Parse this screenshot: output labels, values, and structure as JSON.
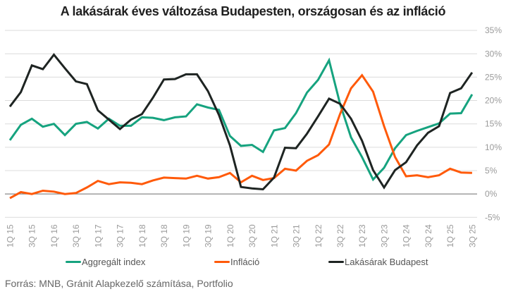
{
  "chart_data": {
    "type": "line",
    "title": "A lakásárak éves változása Budapesten, országosan és az infláció",
    "xlabel": "",
    "ylabel": "",
    "ylim": [
      -5,
      35
    ],
    "yticks": [
      "35%",
      "30%",
      "25%",
      "20%",
      "15%",
      "10%",
      "5%",
      "0%",
      "-5%"
    ],
    "ytick_values": [
      35,
      30,
      25,
      20,
      15,
      10,
      5,
      0,
      -5
    ],
    "y_axis_position": "right",
    "grid": true,
    "legend_position": "bottom",
    "x": [
      "1Q 15",
      "2Q 15",
      "3Q 15",
      "4Q 15",
      "1Q 16",
      "2Q 16",
      "3Q 16",
      "4Q 16",
      "1Q 17",
      "2Q 17",
      "3Q 17",
      "4Q 17",
      "1Q 18",
      "2Q 18",
      "3Q 18",
      "4Q 18",
      "1Q 19",
      "2Q 19",
      "3Q 19",
      "4Q 19",
      "1Q 20",
      "2Q 20",
      "3Q 20",
      "4Q 20",
      "1Q 21",
      "2Q 21",
      "3Q 21",
      "4Q 21",
      "1Q 22",
      "2Q 22",
      "3Q 22",
      "4Q 22",
      "1Q 23",
      "2Q 23",
      "3Q 23",
      "4Q 23",
      "1Q 24",
      "2Q 24",
      "3Q 24",
      "4Q 24",
      "1Q 25",
      "2Q 25",
      "3Q 25"
    ],
    "xtick_labels": [
      "1Q 15",
      "3Q 15",
      "1Q 16",
      "3Q 16",
      "1Q 17",
      "3Q 17",
      "1Q 18",
      "3Q 18",
      "1Q 19",
      "3Q 19",
      "1Q 20",
      "3Q 20",
      "1Q 21",
      "3Q 21",
      "1Q 22",
      "3Q 22",
      "1Q 23",
      "3Q 23",
      "1Q 24",
      "3Q 24",
      "1Q 25",
      "3Q 25"
    ],
    "series": [
      {
        "name": "Aggregált index",
        "color": "#16a37f",
        "values": [
          11.5,
          14.8,
          16.1,
          14.4,
          15.0,
          12.6,
          15.0,
          15.4,
          14.0,
          16.1,
          14.6,
          14.6,
          16.4,
          16.3,
          15.8,
          16.4,
          16.6,
          19.2,
          18.5,
          18.0,
          12.4,
          10.3,
          10.5,
          9.0,
          13.6,
          14.1,
          17.3,
          21.7,
          24.4,
          28.6,
          19.3,
          12.1,
          7.9,
          3.1,
          5.6,
          9.8,
          12.6,
          13.5,
          14.3,
          15.1,
          17.2,
          17.3,
          21.3
        ]
      },
      {
        "name": "Infláció",
        "color": "#ff5a0a",
        "values": [
          -0.9,
          0.4,
          0.0,
          0.7,
          0.5,
          0.0,
          0.2,
          1.4,
          2.8,
          2.1,
          2.5,
          2.4,
          2.1,
          2.9,
          3.5,
          3.4,
          3.3,
          3.9,
          3.3,
          3.6,
          4.5,
          2.5,
          3.9,
          3.0,
          3.4,
          5.4,
          5.0,
          7.1,
          8.3,
          10.6,
          17.1,
          22.6,
          25.4,
          21.9,
          14.5,
          7.9,
          3.8,
          4.0,
          3.6,
          4.0,
          5.4,
          4.6,
          4.5
        ]
      },
      {
        "name": "Lakásárak Budapest",
        "color": "#1e2422",
        "values": [
          18.7,
          21.8,
          27.5,
          26.7,
          29.8,
          26.9,
          24.1,
          23.5,
          17.9,
          15.9,
          13.9,
          15.9,
          17.1,
          20.6,
          24.5,
          24.6,
          25.6,
          25.6,
          22.0,
          16.9,
          10.4,
          1.5,
          1.2,
          1.0,
          3.5,
          9.9,
          9.8,
          12.9,
          16.6,
          20.4,
          19.3,
          16.1,
          11.4,
          5.1,
          1.4,
          5.1,
          6.8,
          10.4,
          13.1,
          14.5,
          21.6,
          22.6,
          26.0
        ]
      }
    ],
    "source": "Forrás: MNB, Gránit Alapkezelő számítása, Portfolio"
  },
  "legend": [
    {
      "label": "Aggregált index",
      "color": "#16a37f"
    },
    {
      "label": "Infláció",
      "color": "#ff5a0a"
    },
    {
      "label": "Lakásárak Budapest",
      "color": "#1e2422"
    }
  ]
}
